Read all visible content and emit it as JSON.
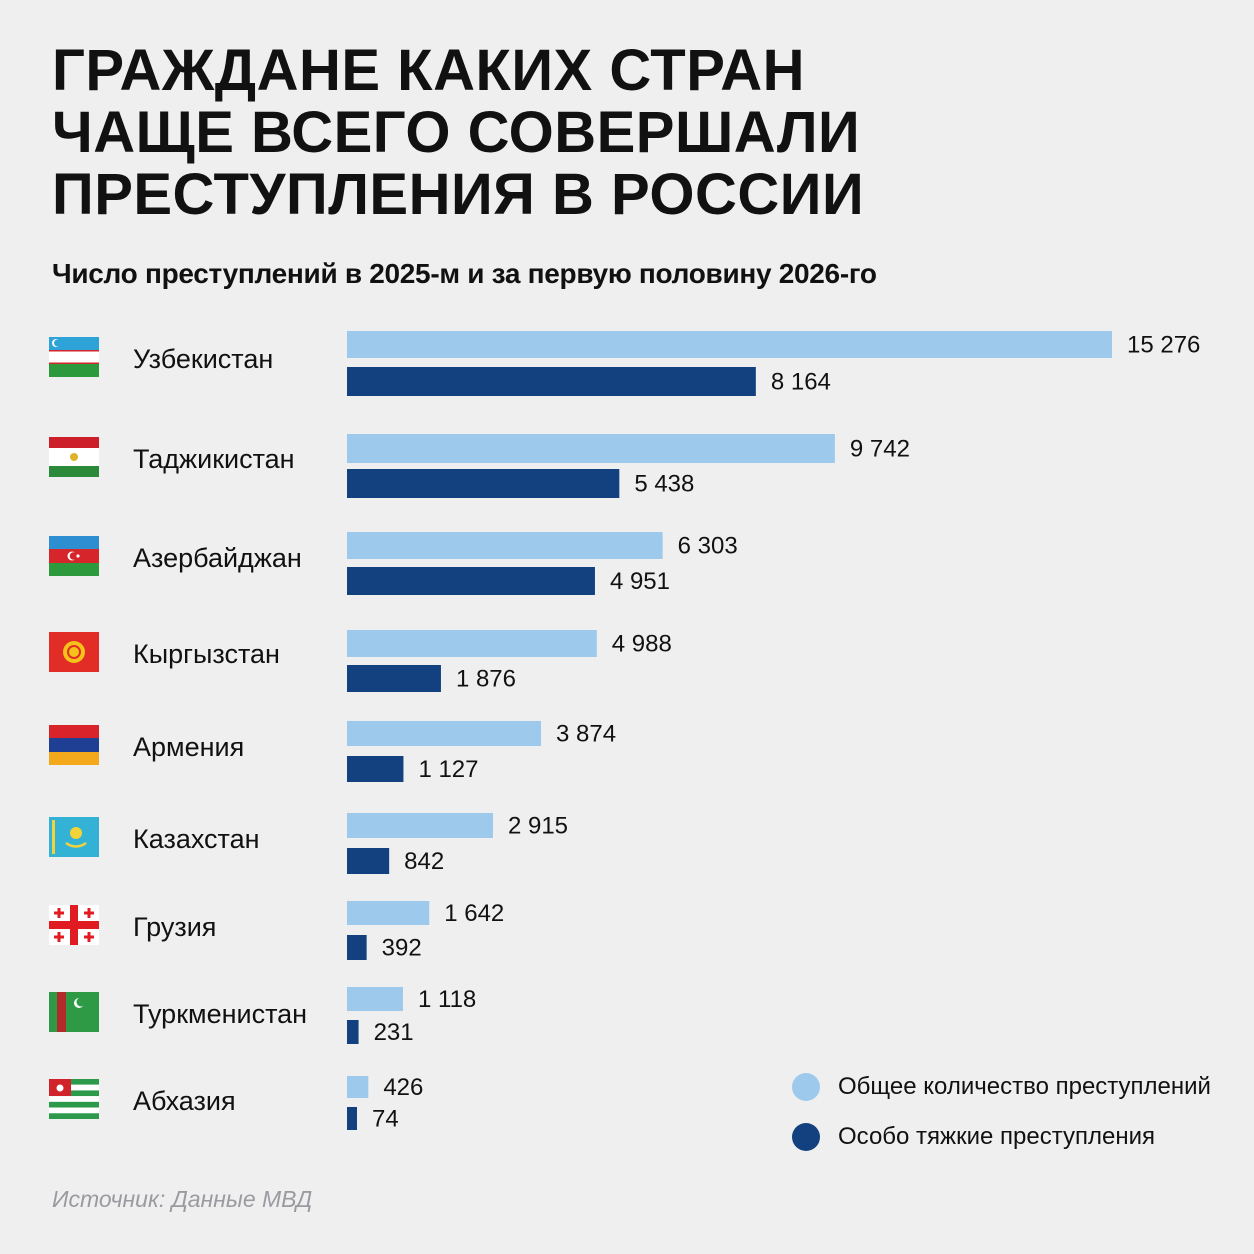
{
  "title_lines": [
    "ГРАЖДАНЕ КАКИХ СТРАН",
    "ЧАЩЕ ВСЕГО СОВЕРШАЛИ",
    "ПРЕСТУПЛЕНИЯ В РОССИИ"
  ],
  "subtitle": "Число преступлений в 2025-м и за первую половину 2026-го",
  "source": "Источник: Данные МВД",
  "colors": {
    "total": "#9dcaec",
    "grave": "#13407e"
  },
  "legend": [
    {
      "label": "Общее количество преступлений",
      "color": "#9dcaec"
    },
    {
      "label": "Особо тяжкие преступления",
      "color": "#13407e"
    }
  ],
  "chart_data": {
    "type": "bar",
    "orientation": "horizontal",
    "title": "ГРАЖДАНЕ КАКИХ СТРАН ЧАЩЕ ВСЕГО СОВЕРШАЛИ ПРЕСТУПЛЕНИЯ В РОССИИ",
    "subtitle": "Число преступлений в 2025-м и за первую половину 2026-го",
    "categories": [
      "Узбекистан",
      "Таджикистан",
      "Азербайджан",
      "Кыргызстан",
      "Армения",
      "Казахстан",
      "Грузия",
      "Туркменистан",
      "Абхазия"
    ],
    "flag_icons": [
      "uzbekistan-flag-icon",
      "tajikistan-flag-icon",
      "azerbaijan-flag-icon",
      "kyrgyzstan-flag-icon",
      "armenia-flag-icon",
      "kazakhstan-flag-icon",
      "georgia-flag-icon",
      "turkmenistan-flag-icon",
      "abkhazia-flag-icon"
    ],
    "series": [
      {
        "name": "Общее количество преступлений",
        "values": [
          15276,
          9742,
          6303,
          4988,
          3874,
          2915,
          1642,
          1118,
          426
        ],
        "labels": [
          "15 276",
          "9 742",
          "6 303",
          "4 988",
          "3 874",
          "2 915",
          "1 642",
          "1 118",
          "426"
        ]
      },
      {
        "name": "Особо тяжкие преступления",
        "values": [
          8164,
          5438,
          4951,
          1876,
          1127,
          842,
          392,
          231,
          74
        ],
        "labels": [
          "8 164",
          "5 438",
          "4 951",
          "1 876",
          "1 127",
          "842",
          "392",
          "231",
          "74"
        ]
      }
    ],
    "legend_position": "bottom-right",
    "grid": false
  }
}
